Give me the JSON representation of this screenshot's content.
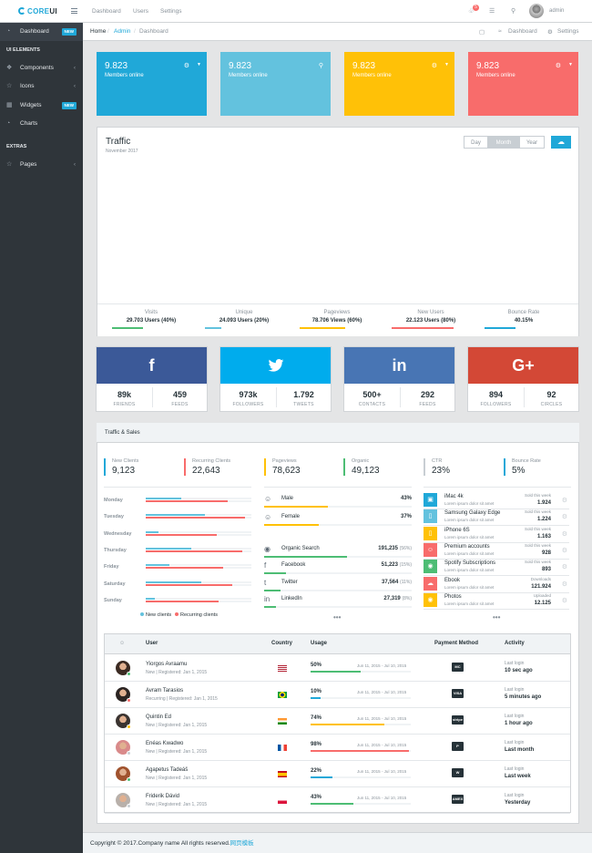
{
  "header": {
    "brand_mark": "CORE",
    "brand_ui": "UI",
    "nav": [
      "Dashboard",
      "Users",
      "Settings"
    ],
    "notif_count": "5",
    "user": "admin"
  },
  "sidebar": {
    "items": [
      {
        "label": "Dashboard",
        "badge": "NEW"
      }
    ],
    "section_ui": "UI ELEMENTS",
    "ui_items": [
      {
        "label": "Components"
      },
      {
        "label": "Icons"
      },
      {
        "label": "Widgets",
        "badge": "NEW"
      },
      {
        "label": "Charts"
      }
    ],
    "section_extras": "EXTRAS",
    "extras_items": [
      {
        "label": "Pages"
      }
    ]
  },
  "breadcrumb": {
    "home": "Home",
    "admin": "Admin",
    "current": "Dashboard",
    "right_dashboard": "Dashboard",
    "right_settings": "Settings"
  },
  "tiles": [
    {
      "value": "9.823",
      "label": "Members online",
      "color": "#20a8d8"
    },
    {
      "value": "9.823",
      "label": "Members online",
      "color": "#63c2de"
    },
    {
      "value": "9.823",
      "label": "Members online",
      "color": "#ffc107"
    },
    {
      "value": "9.823",
      "label": "Members online",
      "color": "#f86c6b"
    }
  ],
  "traffic": {
    "title": "Traffic",
    "subtitle": "November 2017",
    "ranges": [
      "Day",
      "Month",
      "Year"
    ],
    "active_range": "Month",
    "stats": [
      {
        "label": "Visits",
        "value": "29.703 Users (40%)",
        "color": "#4dbd74"
      },
      {
        "label": "Unique",
        "value": "24.093 Users (20%)",
        "color": "#63c2de"
      },
      {
        "label": "Pageviews",
        "value": "78.706 Views (60%)",
        "color": "#ffc107"
      },
      {
        "label": "New Users",
        "value": "22.123 Users (80%)",
        "color": "#f86c6b"
      },
      {
        "label": "Bounce Rate",
        "value": "40.15%",
        "color": "#20a8d8"
      }
    ]
  },
  "social": [
    {
      "network": "facebook",
      "glyph": "f",
      "color": "#3b5998",
      "a_val": "89k",
      "a_lbl": "FRIENDS",
      "b_val": "459",
      "b_lbl": "FEEDS"
    },
    {
      "network": "twitter",
      "glyph": "t",
      "color": "#00aced",
      "a_val": "973k",
      "a_lbl": "FOLLOWERS",
      "b_val": "1.792",
      "b_lbl": "TWEETS"
    },
    {
      "network": "linkedin",
      "glyph": "in",
      "color": "#4875b4",
      "a_val": "500+",
      "a_lbl": "CONTACTS",
      "b_val": "292",
      "b_lbl": "FEEDS"
    },
    {
      "network": "google-plus",
      "glyph": "G+",
      "color": "#d34836",
      "a_val": "894",
      "a_lbl": "FOLLOWERS",
      "b_val": "92",
      "b_lbl": "CIRCLES"
    }
  ],
  "traffic_sales": {
    "title": "Traffic & Sales",
    "kpis": [
      {
        "label": "New Clients",
        "value": "9,123",
        "color": "#20a8d8"
      },
      {
        "label": "Recurring Clients",
        "value": "22,643",
        "color": "#f86c6b"
      },
      {
        "label": "Pageviews",
        "value": "78,623",
        "color": "#ffc107"
      },
      {
        "label": "Organic",
        "value": "49,123",
        "color": "#4dbd74"
      },
      {
        "label": "CTR",
        "value": "23%",
        "color": "#c8ced3"
      },
      {
        "label": "Bounce Rate",
        "value": "5%",
        "color": "#20a8d8"
      }
    ],
    "days": [
      {
        "day": "Monday",
        "new": 34,
        "rec": 78
      },
      {
        "day": "Tuesday",
        "new": 56,
        "rec": 94
      },
      {
        "day": "Wednesday",
        "new": 12,
        "rec": 67
      },
      {
        "day": "Thursday",
        "new": 43,
        "rec": 91
      },
      {
        "day": "Friday",
        "new": 22,
        "rec": 73
      },
      {
        "day": "Saturday",
        "new": 53,
        "rec": 82
      },
      {
        "day": "Sunday",
        "new": 9,
        "rec": 69
      }
    ],
    "legend_new": "New clients",
    "legend_rec": "Recurring clients",
    "legend_new_color": "#63c2de",
    "legend_rec_color": "#f86c6b",
    "gender": [
      {
        "label": "Male",
        "value": "43%",
        "pct": 43,
        "icon": "user-icon"
      },
      {
        "label": "Female",
        "value": "37%",
        "pct": 37,
        "icon": "user-icon"
      }
    ],
    "sources": [
      {
        "label": "Organic Search",
        "value": "191,235",
        "pct_label": "(56%)",
        "pct": 56,
        "icon": "globe-icon"
      },
      {
        "label": "Facebook",
        "value": "51,223",
        "pct_label": "(15%)",
        "pct": 15,
        "icon": "facebook-icon"
      },
      {
        "label": "Twitter",
        "value": "37,564",
        "pct_label": "(11%)",
        "pct": 11,
        "icon": "twitter-icon"
      },
      {
        "label": "LinkedIn",
        "value": "27,319",
        "pct_label": "(8%)",
        "pct": 8,
        "icon": "linkedin-icon"
      }
    ],
    "more": "•••",
    "products": [
      {
        "name": "iMac 4k",
        "desc": "Lorem ipsum dolor sit amet",
        "sub": "Sold this week",
        "value": "1.924",
        "color": "#20a8d8",
        "icon": "desktop-icon"
      },
      {
        "name": "Samsung Galaxy Edge",
        "desc": "Lorem ipsum dolor sit amet",
        "sub": "Sold this week",
        "value": "1.224",
        "color": "#63c2de",
        "icon": "tablet-icon"
      },
      {
        "name": "iPhone 6S",
        "desc": "Lorem ipsum dolor sit amet",
        "sub": "Sold this week",
        "value": "1.163",
        "color": "#ffc107",
        "icon": "phone-icon"
      },
      {
        "name": "Premium accounts",
        "desc": "Lorem ipsum dolor sit amet",
        "sub": "Sold this week",
        "value": "928",
        "color": "#f86c6b",
        "icon": "user-icon"
      },
      {
        "name": "Spotify Subscriptions",
        "desc": "Lorem ipsum dolor sit amet",
        "sub": "Sold this week",
        "value": "893",
        "color": "#4dbd74",
        "icon": "spotify-icon"
      },
      {
        "name": "Ebook",
        "desc": "Lorem ipsum dolor sit amet",
        "sub": "Downloads",
        "value": "121.924",
        "color": "#f86c6b",
        "icon": "cloud-icon"
      },
      {
        "name": "Photos",
        "desc": "Lorem ipsum dolor sit amet",
        "sub": "Uploaded",
        "value": "12.125",
        "color": "#ffc107",
        "icon": "camera-icon"
      }
    ]
  },
  "users_table": {
    "headers": {
      "user": "User",
      "country": "Country",
      "usage": "Usage",
      "payment": "Payment Method",
      "activity": "Activity"
    },
    "rows": [
      {
        "name": "Yiorgos Avraamu",
        "reg": "New | Registered: Jan 1, 2015",
        "flag": "us",
        "usage": "50%",
        "pct": 50,
        "range": "Jun 11, 2015 - Jul 10, 2015",
        "bar": "#4dbd74",
        "pay": "MC",
        "act_lbl": "Last login",
        "act": "10 sec ago",
        "status": "#4dbd74",
        "avatar": "#3b2a22"
      },
      {
        "name": "Avram Tarasios",
        "reg": "Recurring | Registered: Jan 1, 2015",
        "flag": "br",
        "usage": "10%",
        "pct": 10,
        "range": "Jun 11, 2015 - Jul 10, 2015",
        "bar": "#20a8d8",
        "pay": "VISA",
        "act_lbl": "Last login",
        "act": "5 minutes ago",
        "status": "#f86c6b",
        "avatar": "#2b2422"
      },
      {
        "name": "Quintin Ed",
        "reg": "New | Registered: Jan 1, 2015",
        "flag": "in",
        "usage": "74%",
        "pct": 74,
        "range": "Jun 11, 2015 - Jul 10, 2015",
        "bar": "#ffc107",
        "pay": "stripe",
        "act_lbl": "Last login",
        "act": "1 hour ago",
        "status": "#ffc107",
        "avatar": "#3a3330"
      },
      {
        "name": "Enéas Kwadwo",
        "reg": "New | Registered: Jan 1, 2015",
        "flag": "fr",
        "usage": "98%",
        "pct": 98,
        "range": "Jun 11, 2015 - Jul 10, 2015",
        "bar": "#f86c6b",
        "pay": "P",
        "act_lbl": "Last login",
        "act": "Last month",
        "status": "#c8ced3",
        "avatar": "#d98a8a"
      },
      {
        "name": "Agapetus Tadeáš",
        "reg": "New | Registered: Jan 1, 2015",
        "flag": "es",
        "usage": "22%",
        "pct": 22,
        "range": "Jun 11, 2015 - Jul 10, 2015",
        "bar": "#20a8d8",
        "pay": "W",
        "act_lbl": "Last login",
        "act": "Last week",
        "status": "#4dbd74",
        "avatar": "#a0522d"
      },
      {
        "name": "Friderik Dávid",
        "reg": "New | Registered: Jan 1, 2015",
        "flag": "pl",
        "usage": "43%",
        "pct": 43,
        "range": "Jun 11, 2015 - Jul 10, 2015",
        "bar": "#4dbd74",
        "pay": "AMEX",
        "act_lbl": "Last login",
        "act": "Yesterday",
        "status": "#c8ced3",
        "avatar": "#b8b0aa"
      }
    ]
  },
  "footer": {
    "text": "Copyright © 2017.Company name All rights reserved.",
    "link": "网页模板"
  }
}
